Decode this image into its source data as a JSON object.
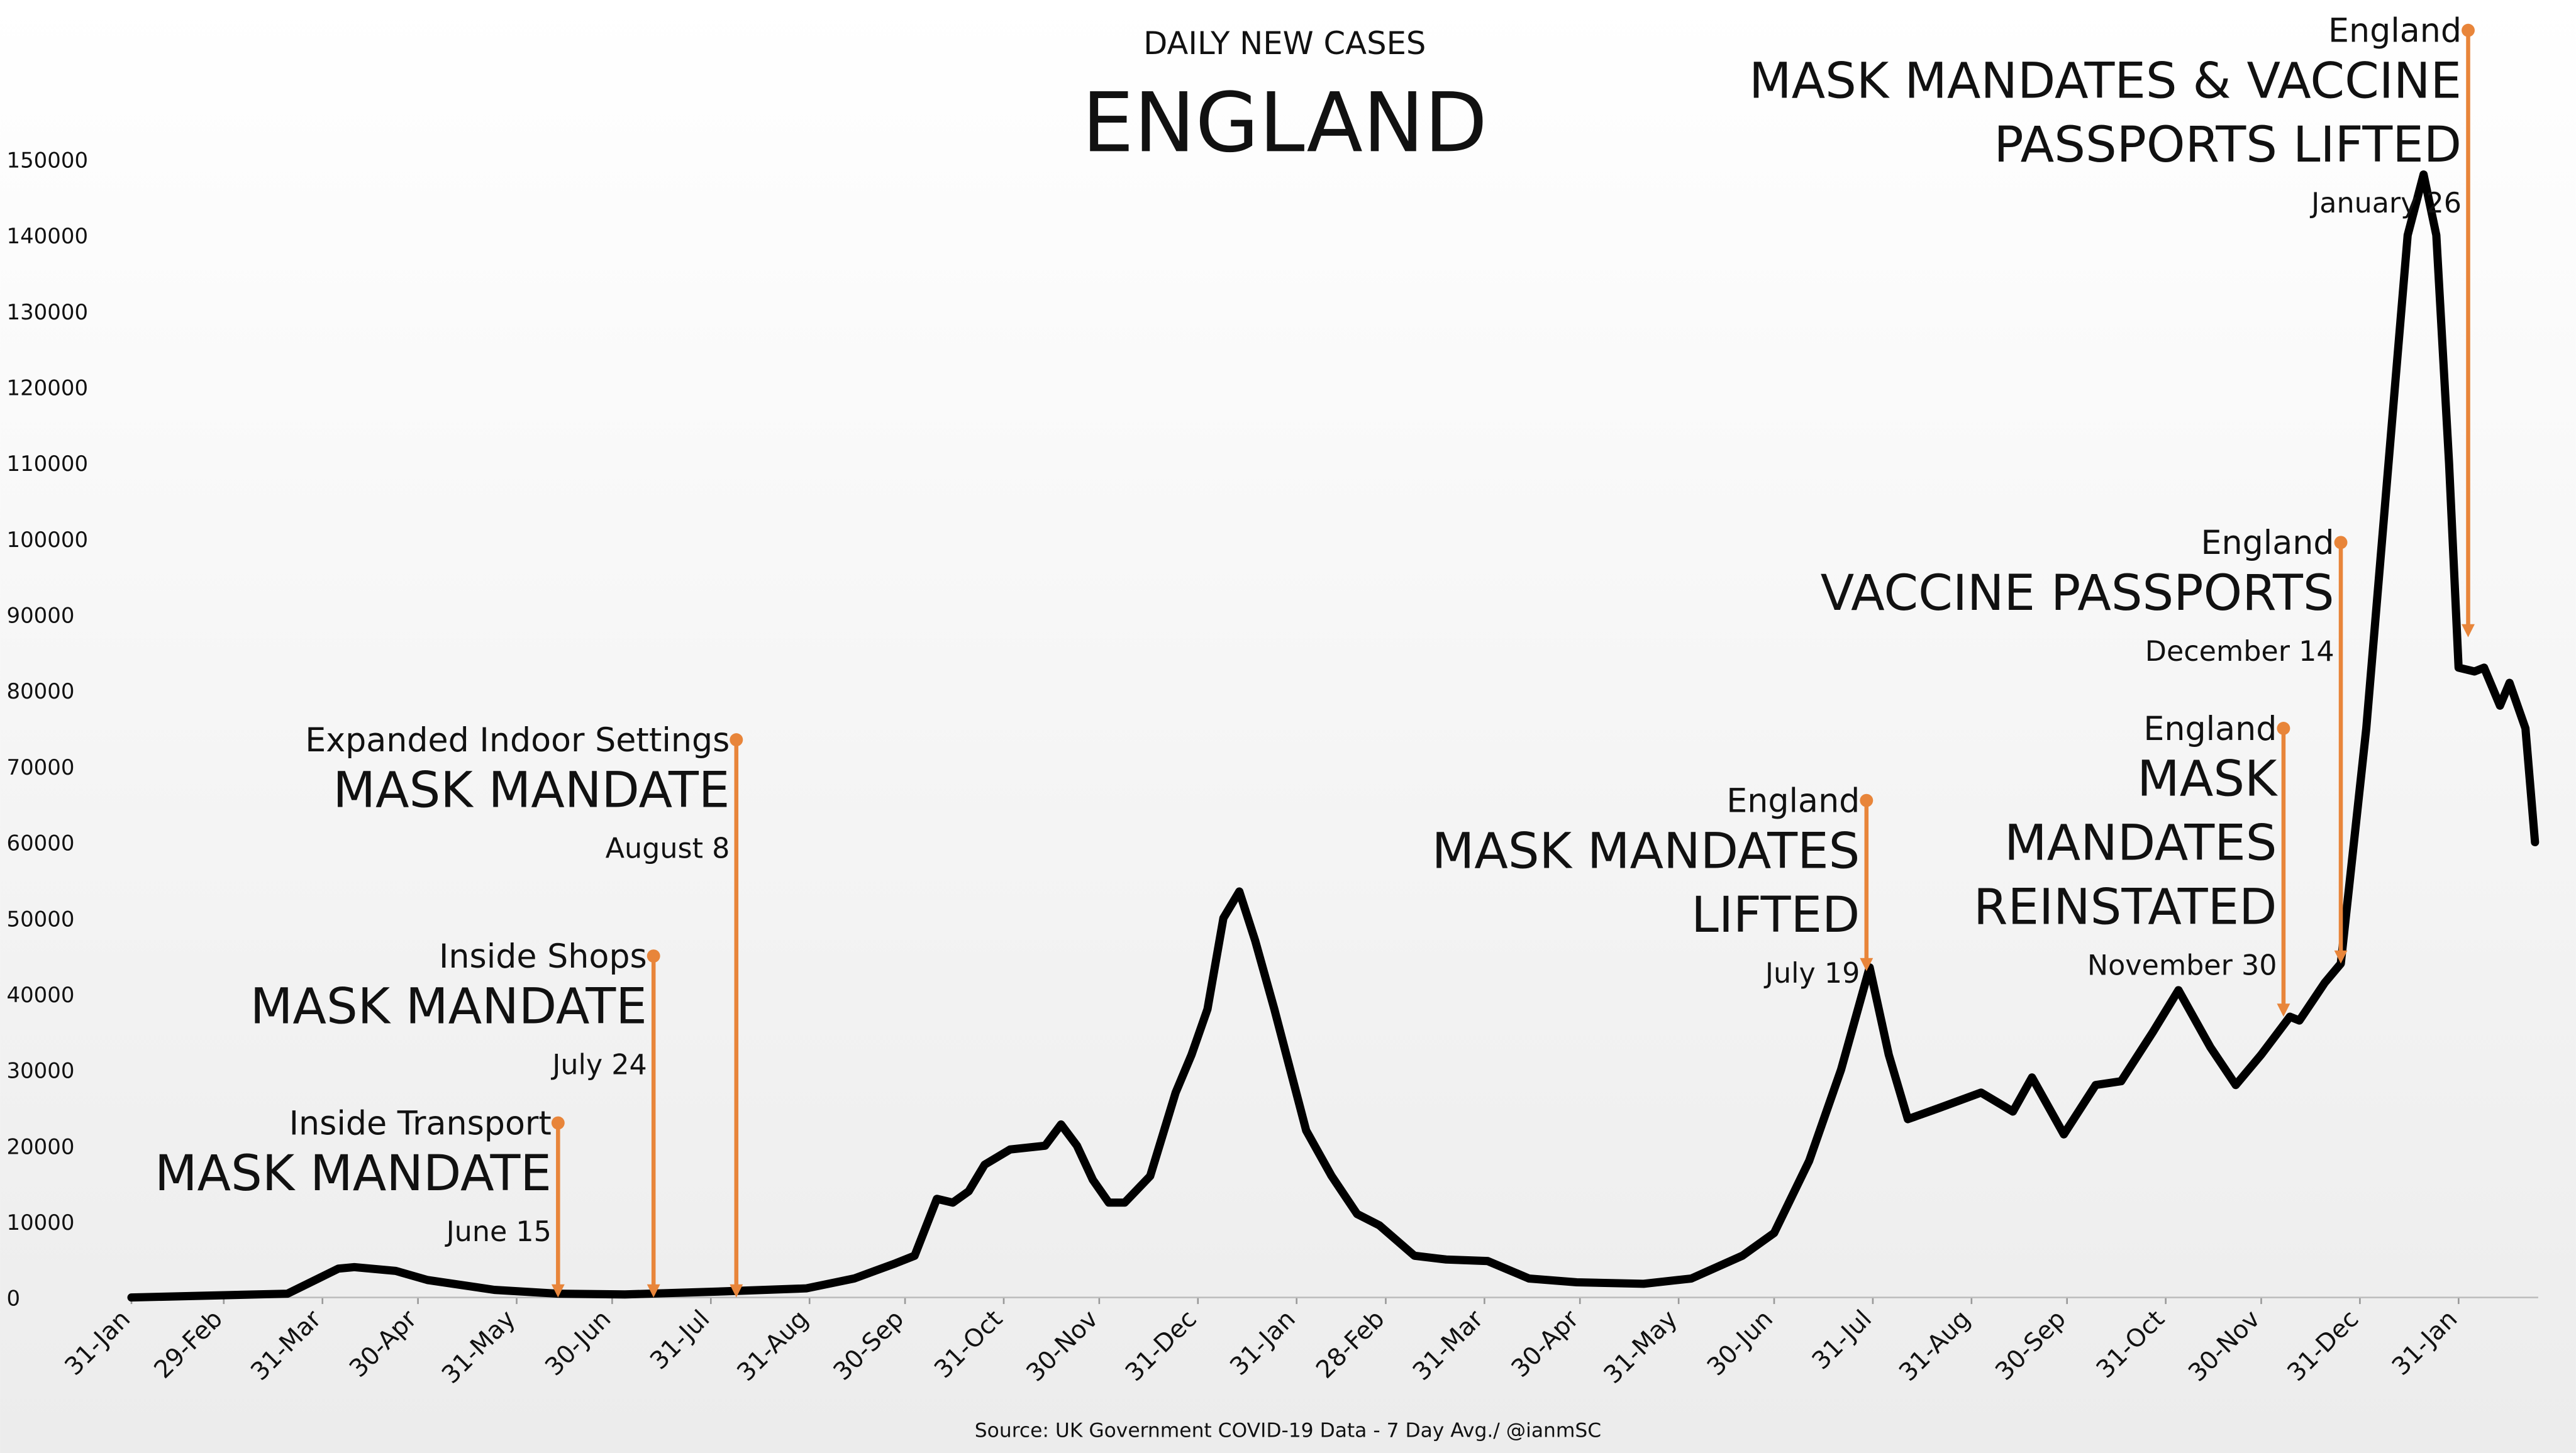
{
  "chart_data": {
    "type": "line",
    "title": "DAILY NEW CASES",
    "subtitle": "ENGLAND",
    "source": "Source: UK Government COVID-19 Data - 7 Day Avg./ @ianmSC",
    "xlim": [
      0,
      756
    ],
    "xticks": [
      {
        "value": 0,
        "label": "31-Jan"
      },
      {
        "value": 29,
        "label": "29-Feb"
      },
      {
        "value": 60,
        "label": "31-Mar"
      },
      {
        "value": 90,
        "label": "30-Apr"
      },
      {
        "value": 121,
        "label": "31-May"
      },
      {
        "value": 151,
        "label": "30-Jun"
      },
      {
        "value": 182,
        "label": "31-Jul"
      },
      {
        "value": 213,
        "label": "31-Aug"
      },
      {
        "value": 243,
        "label": "30-Sep"
      },
      {
        "value": 274,
        "label": "31-Oct"
      },
      {
        "value": 304,
        "label": "30-Nov"
      },
      {
        "value": 335,
        "label": "31-Dec"
      },
      {
        "value": 366,
        "label": "31-Jan"
      },
      {
        "value": 394,
        "label": "28-Feb"
      },
      {
        "value": 425,
        "label": "31-Mar"
      },
      {
        "value": 455,
        "label": "30-Apr"
      },
      {
        "value": 486,
        "label": "31-May"
      },
      {
        "value": 516,
        "label": "30-Jun"
      },
      {
        "value": 547,
        "label": "31-Jul"
      },
      {
        "value": 578,
        "label": "31-Aug"
      },
      {
        "value": 608,
        "label": "30-Sep"
      },
      {
        "value": 639,
        "label": "31-Oct"
      },
      {
        "value": 669,
        "label": "30-Nov"
      },
      {
        "value": 700,
        "label": "31-Dec"
      },
      {
        "value": 731,
        "label": "31-Jan"
      }
    ],
    "ylim": [
      0,
      150000
    ],
    "yticks": [
      0,
      10000,
      20000,
      30000,
      40000,
      50000,
      60000,
      70000,
      80000,
      90000,
      100000,
      110000,
      120000,
      130000,
      140000,
      150000
    ],
    "series": [
      {
        "name": "England",
        "color": "#000000",
        "x": [
          0,
          49,
          65,
          70,
          83,
          93,
          114,
          134,
          155,
          186,
          212,
          227,
          240,
          246,
          253,
          258,
          263,
          268,
          276,
          287,
          292,
          297,
          302,
          307,
          312,
          320,
          328,
          333,
          338,
          343,
          348,
          353,
          359,
          364,
          369,
          377,
          385,
          392,
          403,
          413,
          426,
          439,
          454,
          475,
          490,
          506,
          516,
          527,
          537,
          546,
          552,
          558,
          568,
          581,
          591,
          597,
          607,
          617,
          625,
          635,
          643,
          653,
          661,
          669,
          678,
          681,
          689,
          694,
          702,
          710,
          715,
          720,
          724,
          728,
          731,
          736,
          739,
          744,
          747,
          752,
          755
        ],
        "values": [
          0,
          500,
          3800,
          4000,
          3500,
          2300,
          1000,
          500,
          400,
          800,
          1200,
          2500,
          4500,
          5500,
          13000,
          12500,
          14000,
          17500,
          19500,
          20000,
          22800,
          20000,
          15500,
          12500,
          12500,
          16000,
          27000,
          32000,
          38000,
          50000,
          53500,
          47000,
          38000,
          30000,
          22000,
          16000,
          11000,
          9500,
          5500,
          5000,
          4800,
          2500,
          2000,
          1800,
          2500,
          5500,
          8500,
          18000,
          30000,
          43500,
          32000,
          23500,
          25000,
          27000,
          24500,
          29000,
          21500,
          28000,
          28500,
          35000,
          40500,
          33000,
          28000,
          32000,
          37000,
          36500,
          41500,
          44000,
          75000,
          115000,
          140000,
          148000,
          140000,
          110000,
          83000,
          82500,
          83000,
          78000,
          81000,
          75000,
          60000
        ]
      }
    ],
    "annotation_color": "#e8853a",
    "annotations": [
      {
        "label": "Inside Transport",
        "title_lines": [
          "MASK MANDATE"
        ],
        "date": "June 15",
        "x": 134,
        "y_from": 23000,
        "y_to": 0
      },
      {
        "label": "Inside Shops",
        "title_lines": [
          "MASK MANDATE"
        ],
        "date": "July 24",
        "x": 164,
        "y_from": 45000,
        "y_to": 0
      },
      {
        "label": "Expanded Indoor Settings",
        "title_lines": [
          "MASK MANDATE"
        ],
        "date": "August 8",
        "x": 190,
        "y_from": 73500,
        "y_to": 0
      },
      {
        "label": "England",
        "title_lines": [
          "MASK MANDATES",
          "LIFTED"
        ],
        "date": "July 19",
        "x": 545,
        "y_from": 65500,
        "y_to": 43000
      },
      {
        "label": "England",
        "title_lines": [
          "MASK",
          "MANDATES",
          "REINSTATED"
        ],
        "date": "November 30",
        "x": 676,
        "y_from": 75000,
        "y_to": 37000
      },
      {
        "label": "England",
        "title_lines": [
          "VACCINE PASSPORTS"
        ],
        "date": "December 14",
        "x": 694,
        "y_from": 99500,
        "y_to": 44000
      },
      {
        "label": "England",
        "title_lines": [
          "MASK MANDATES & VACCINE",
          "PASSPORTS LIFTED"
        ],
        "date": "January 26",
        "x": 734,
        "y_from": 167000,
        "y_to": 87000
      }
    ]
  }
}
